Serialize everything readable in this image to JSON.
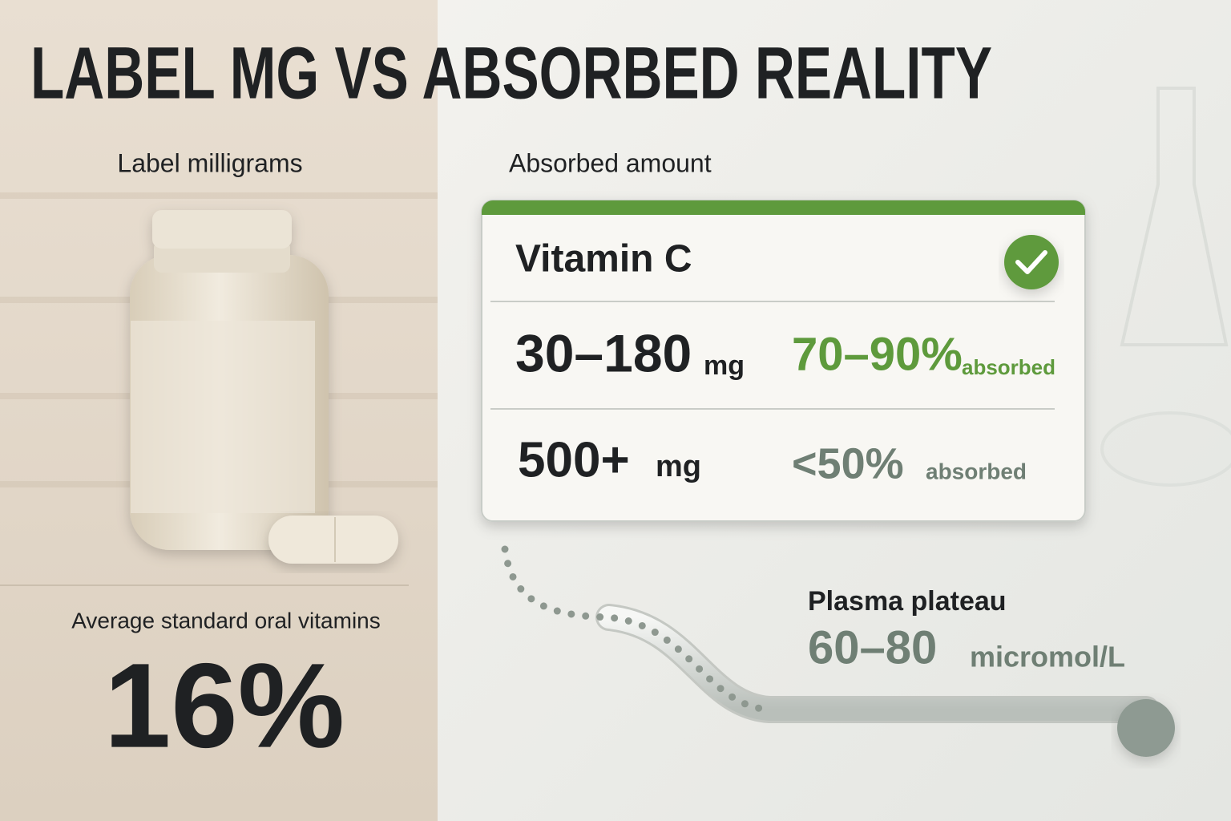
{
  "title": "LABEL MG VS ABSORBED REALITY",
  "left": {
    "heading": "Label milligrams",
    "caption": "Average standard oral vitamins",
    "stat": "16%"
  },
  "right": {
    "heading": "Absorbed amount",
    "card": {
      "title": "Vitamin C",
      "rows": [
        {
          "dose": "30–180",
          "unit": "mg",
          "rate": "70–90%",
          "note": "absorbed"
        },
        {
          "dose": "500+",
          "unit": "mg",
          "rate": "<50%",
          "note": "absorbed"
        }
      ]
    },
    "plateau": {
      "label": "Plasma plateau",
      "value": "60–80",
      "unit": "micromol/L"
    }
  }
}
